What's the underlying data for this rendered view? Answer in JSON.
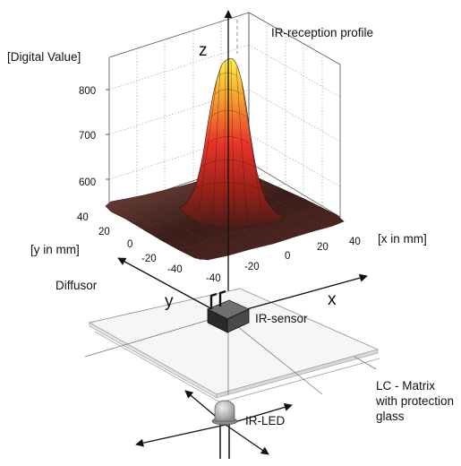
{
  "title": "IR-reception profile",
  "z_axis": {
    "label": "[Digital Value]",
    "ticks": [
      "800",
      "700",
      "600"
    ]
  },
  "y_axis": {
    "label": "[y in mm]",
    "ticks": [
      "40",
      "20",
      "0",
      "-20",
      "-40"
    ]
  },
  "x_axis": {
    "label": "[x in mm]",
    "ticks": [
      "-40",
      "-20",
      "0",
      "20",
      "40"
    ]
  },
  "axis_letters": {
    "z": "z",
    "y": "y",
    "x": "x"
  },
  "components": {
    "diffusor": "Diffusor",
    "ir_sensor": "IR-sensor",
    "lc_matrix_line1": "LC - Matrix",
    "lc_matrix_line2": "with protection",
    "lc_matrix_line3": "glass",
    "ir_led": "IR-LED"
  },
  "colors": {
    "peak": "#fff24a",
    "mid": "#e8342a",
    "base": "#3a1c18"
  }
}
